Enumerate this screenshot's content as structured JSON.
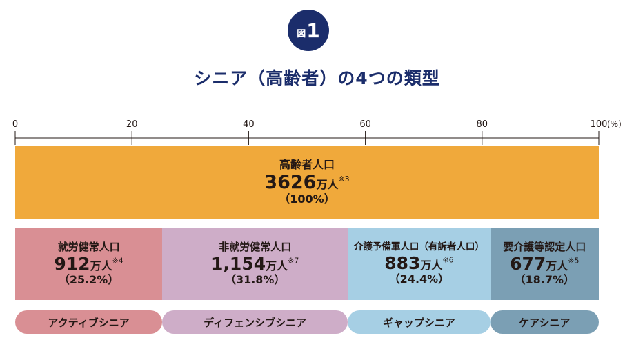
{
  "figure": {
    "badge_word": "図",
    "badge_number": "1"
  },
  "title": "シニア（高齢者）の4つの類型",
  "colors": {
    "total": "#f0a93b",
    "active": "#d98f94",
    "defensive": "#ceadc8",
    "gap": "#a6cfe4",
    "care": "#7b9fb4",
    "navy": "#1b2d6b"
  },
  "chart_data": {
    "type": "bar",
    "orientation": "horizontal-stacked",
    "x_axis": {
      "ticks": [
        "0",
        "20",
        "40",
        "60",
        "80",
        "100"
      ],
      "unit": "(%)",
      "range": [
        0,
        100
      ]
    },
    "total": {
      "label": "高齢者人口",
      "value": "3626",
      "unit": "万人",
      "note": "※3",
      "percent": 100,
      "percent_text": "（100%）"
    },
    "series": [
      {
        "label": "就労健常人口",
        "value": "912",
        "unit": "万人",
        "note": "※4",
        "percent": 25.2,
        "percent_text": "（25.2%）",
        "type_name": "アクティブシニア",
        "color": "#d98f94"
      },
      {
        "label": "非就労健常人口",
        "value": "1,154",
        "unit": "万人",
        "note": "※7",
        "percent": 31.8,
        "percent_text": "（31.8%）",
        "type_name": "ディフェンシブシニア",
        "color": "#ceadc8"
      },
      {
        "label": "介護予備軍人口（有訴者人口）",
        "value": "883",
        "unit": "万人",
        "note": "※6",
        "percent": 24.4,
        "percent_text": "（24.4%）",
        "type_name": "ギャップシニア",
        "color": "#a6cfe4"
      },
      {
        "label": "要介護等認定人口",
        "value": "677",
        "unit": "万人",
        "note": "※5",
        "percent": 18.7,
        "percent_text": "（18.7%）",
        "type_name": "ケアシニア",
        "color": "#7b9fb4"
      }
    ]
  }
}
